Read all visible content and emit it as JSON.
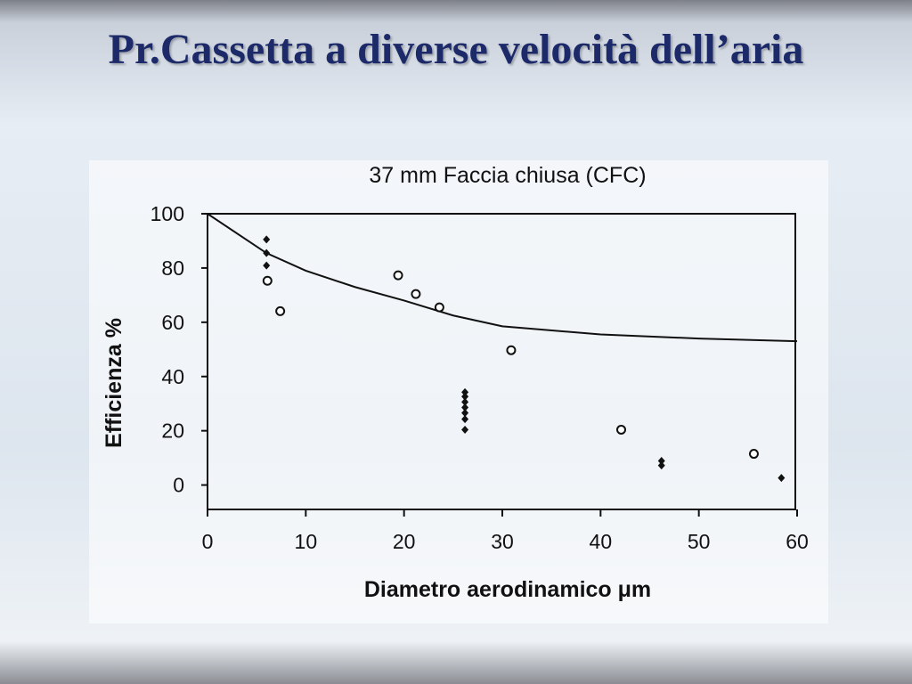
{
  "slide": {
    "title": "Pr.Cassetta a diverse velocità dell’aria"
  },
  "chart_data": {
    "type": "scatter",
    "title": "37 mm Faccia chiusa (CFC)",
    "x_label": "Diametro aerodinamico μm",
    "y_label": "Efficienza %",
    "xlim": [
      0,
      60
    ],
    "xticks": [
      0,
      10,
      20,
      30,
      40,
      50,
      60
    ],
    "ylim": [
      -9,
      100
    ],
    "yticks": [
      0,
      20,
      40,
      60,
      80,
      100
    ],
    "series": [
      {
        "marker": "line",
        "color": "#111111",
        "x": [
          0,
          6,
          10,
          15,
          20,
          25,
          30,
          40,
          50,
          60
        ],
        "values": [
          100,
          85.5,
          79,
          73,
          68,
          62.5,
          58.5,
          55.5,
          54,
          53
        ]
      },
      {
        "marker": "circle",
        "color": "#111111",
        "x": [
          6.1,
          7.4,
          19.4,
          21.2,
          23.6,
          30.9,
          42.1,
          55.6
        ],
        "values": [
          75.3,
          64.1,
          77.3,
          70.4,
          65.5,
          49.7,
          20.4,
          11.5
        ]
      },
      {
        "marker": "diamond",
        "color": "#111111",
        "x": [
          6,
          6,
          6,
          26.2,
          26.2,
          26.2,
          26.2,
          26.2,
          26.2,
          26.2,
          46.2,
          46.2,
          58.4
        ],
        "values": [
          90.5,
          85.5,
          80.9,
          34.2,
          32.6,
          30.6,
          28.6,
          26.6,
          24.3,
          20.4,
          8.9,
          7.2,
          2.6
        ]
      }
    ]
  }
}
